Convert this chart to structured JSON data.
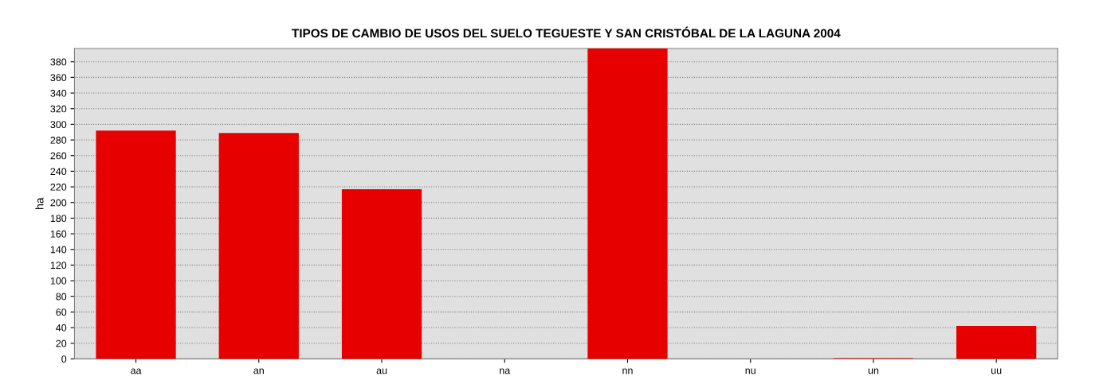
{
  "chart_data": {
    "type": "bar",
    "title": "TIPOS DE CAMBIO DE USOS DEL SUELO TEGUESTE Y SAN CRISTÓBAL DE LA LAGUNA 2004",
    "ylabel": "ha",
    "categories": [
      "aa",
      "an",
      "au",
      "na",
      "nn",
      "nu",
      "un",
      "uu"
    ],
    "values": [
      292,
      289,
      217,
      0,
      397,
      0,
      1,
      42
    ],
    "color": "#e60000",
    "ylim": [
      0,
      397
    ],
    "yticks": [
      0,
      20,
      40,
      60,
      80,
      100,
      120,
      140,
      160,
      180,
      200,
      220,
      240,
      260,
      280,
      300,
      320,
      340,
      360,
      380
    ],
    "grid": "y"
  }
}
